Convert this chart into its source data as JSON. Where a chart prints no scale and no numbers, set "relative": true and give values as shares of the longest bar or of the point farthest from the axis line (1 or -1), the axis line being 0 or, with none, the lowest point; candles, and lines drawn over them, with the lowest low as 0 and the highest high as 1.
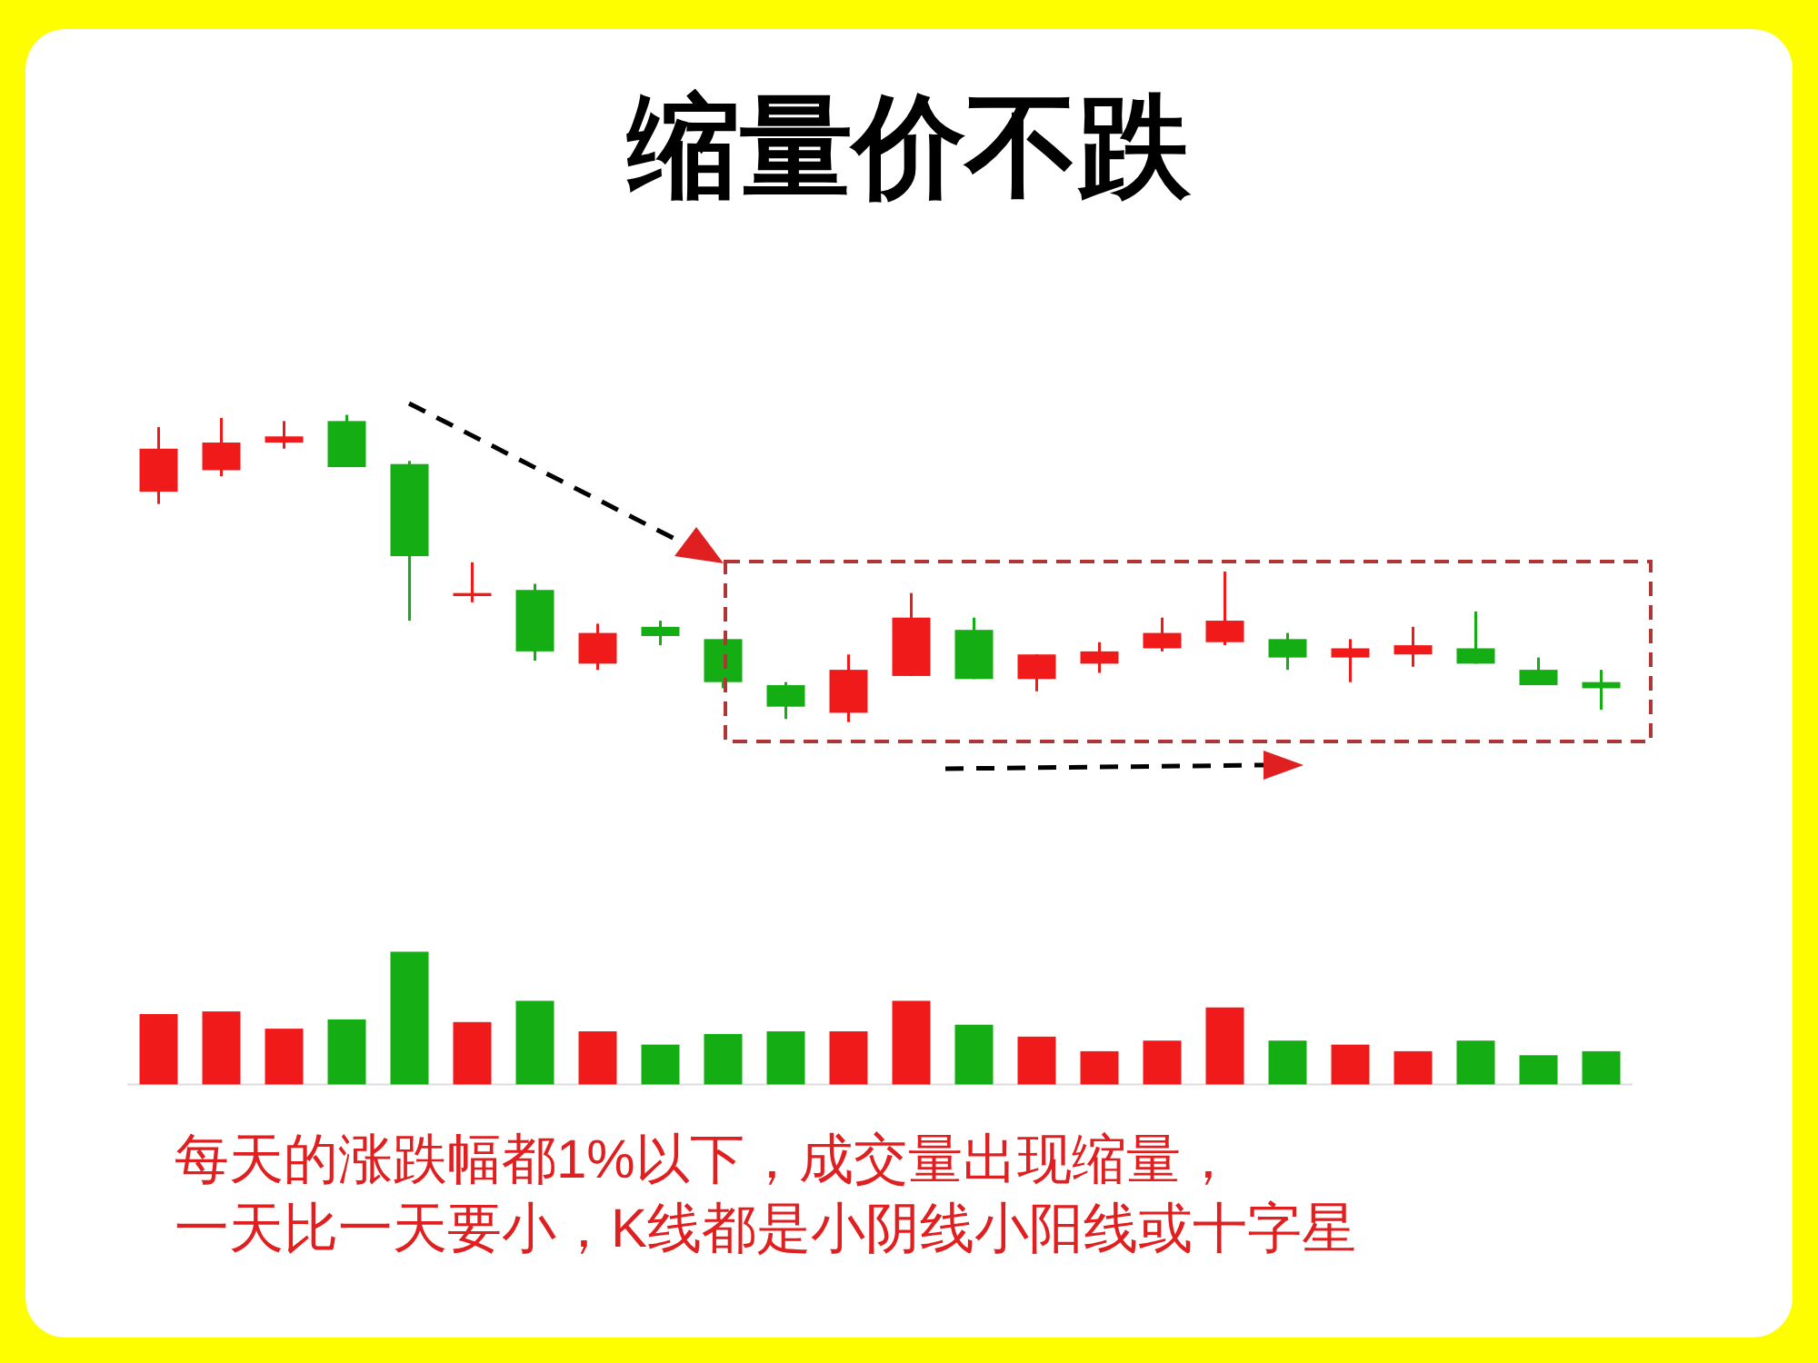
{
  "chart_data": [
    {
      "type": "candlestick",
      "title": "缩量价不跌",
      "relative": true,
      "categories": [
        null,
        null,
        null,
        null,
        null,
        null,
        null,
        null,
        null,
        null,
        null,
        null,
        null,
        null,
        null,
        null,
        null,
        null,
        null,
        null,
        null,
        null,
        null,
        null
      ],
      "ohlc": [
        [
          0.75,
          0.96,
          0.71,
          0.89
        ],
        [
          0.82,
          0.99,
          0.8,
          0.91
        ],
        [
          0.91,
          0.98,
          0.89,
          0.93
        ],
        [
          0.98,
          1,
          0.83,
          0.83
        ],
        [
          0.84,
          0.85,
          0.33,
          0.54
        ],
        [
          0.41,
          0.52,
          0.39,
          0.42
        ],
        [
          0.43,
          0.45,
          0.2,
          0.23
        ],
        [
          0.19,
          0.32,
          0.17,
          0.29
        ],
        [
          0.31,
          0.33,
          0.25,
          0.28
        ],
        [
          0.27,
          0.27,
          0.11,
          0.13
        ],
        [
          0.12,
          0.13,
          0.01,
          0.05
        ],
        [
          0.03,
          0.22,
          0,
          0.17
        ],
        [
          0.15,
          0.42,
          0.15,
          0.34
        ],
        [
          0.3,
          0.34,
          0.14,
          0.14
        ],
        [
          0.14,
          0.22,
          0.1,
          0.22
        ],
        [
          0.19,
          0.26,
          0.16,
          0.23
        ],
        [
          0.24,
          0.34,
          0.23,
          0.29
        ],
        [
          0.26,
          0.49,
          0.25,
          0.33
        ],
        [
          0.27,
          0.29,
          0.17,
          0.21
        ],
        [
          0.21,
          0.27,
          0.13,
          0.24
        ],
        [
          0.22,
          0.31,
          0.18,
          0.25
        ],
        [
          0.24,
          0.36,
          0.19,
          0.19
        ],
        [
          0.17,
          0.21,
          0.12,
          0.12
        ],
        [
          0.13,
          0.17,
          0.04,
          0.11
        ]
      ],
      "colors": [
        "#f01a1a",
        "#f01a1a",
        "#f01a1a",
        "#14ad14",
        "#14ad14",
        "#f01a1a",
        "#14ad14",
        "#f01a1a",
        "#14ad14",
        "#14ad14",
        "#14ad14",
        "#f01a1a",
        "#f01a1a",
        "#14ad14",
        "#f01a1a",
        "#f01a1a",
        "#f01a1a",
        "#f01a1a",
        "#14ad14",
        "#f01a1a",
        "#f01a1a",
        "#14ad14",
        "#14ad14",
        "#14ad14"
      ],
      "annotations": [
        "每天的涨跌幅都1%以下，成交量出现缩量，",
        "一天比一天要小，K线都是小阴线小阳线或十字星"
      ]
    },
    {
      "type": "bar",
      "relative": true,
      "categories": [
        null,
        null,
        null,
        null,
        null,
        null,
        null,
        null,
        null,
        null,
        null,
        null,
        null,
        null,
        null,
        null,
        null,
        null,
        null,
        null,
        null,
        null,
        null,
        null
      ],
      "values": [
        0.53,
        0.55,
        0.42,
        0.49,
        1,
        0.47,
        0.63,
        0.4,
        0.3,
        0.38,
        0.4,
        0.4,
        0.63,
        0.45,
        0.36,
        0.25,
        0.33,
        0.58,
        0.33,
        0.3,
        0.25,
        0.33,
        0.22,
        0.25
      ],
      "colors": [
        "#f01a1a",
        "#f01a1a",
        "#f01a1a",
        "#14ad14",
        "#14ad14",
        "#f01a1a",
        "#14ad14",
        "#f01a1a",
        "#14ad14",
        "#14ad14",
        "#14ad14",
        "#f01a1a",
        "#f01a1a",
        "#14ad14",
        "#f01a1a",
        "#f01a1a",
        "#f01a1a",
        "#f01a1a",
        "#14ad14",
        "#f01a1a",
        "#f01a1a",
        "#14ad14",
        "#14ad14",
        "#14ad14"
      ]
    }
  ]
}
